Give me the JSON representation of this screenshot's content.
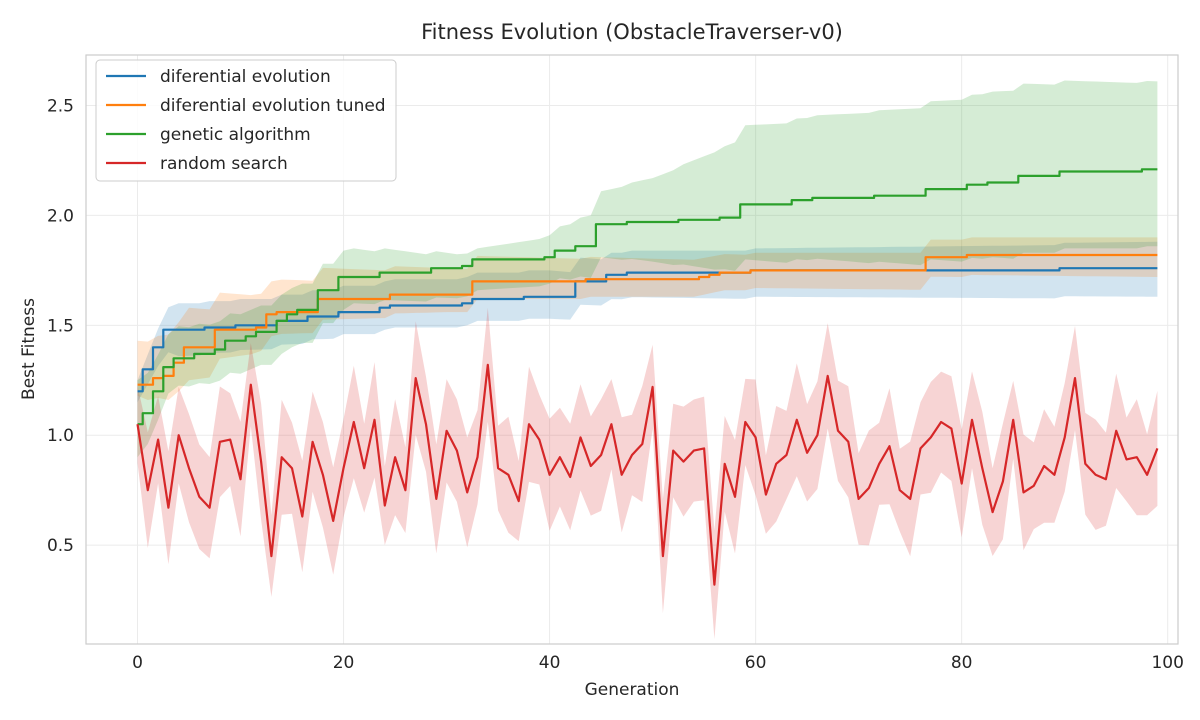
{
  "chart_data": {
    "type": "line",
    "title": "Fitness Evolution (ObstacleTraverser-v0)",
    "xlabel": "Generation",
    "ylabel": "Best Fitness",
    "xlim": [
      -5,
      101
    ],
    "ylim": [
      0.05,
      2.73
    ],
    "xticks": [
      0,
      20,
      40,
      60,
      80,
      100
    ],
    "yticks": [
      0.5,
      1.0,
      1.5,
      2.0,
      2.5
    ],
    "xtick_labels": [
      "0",
      "20",
      "40",
      "60",
      "80",
      "100"
    ],
    "ytick_labels": [
      "0.5",
      "1.0",
      "1.5",
      "2.0",
      "2.5"
    ],
    "grid": true,
    "legend_position": "upper-left",
    "x_range": [
      0,
      99
    ],
    "series": [
      {
        "name": "diferential evolution",
        "color": "#1f77b4",
        "steps": [
          [
            0,
            1.2
          ],
          [
            1,
            1.3
          ],
          [
            2,
            1.4
          ],
          [
            3,
            1.48
          ],
          [
            7,
            1.49
          ],
          [
            10,
            1.5
          ],
          [
            14,
            1.52
          ],
          [
            17,
            1.54
          ],
          [
            20,
            1.56
          ],
          [
            24,
            1.58
          ],
          [
            25,
            1.59
          ],
          [
            32,
            1.6
          ],
          [
            33,
            1.62
          ],
          [
            38,
            1.63
          ],
          [
            43,
            1.7
          ],
          [
            46,
            1.73
          ],
          [
            47,
            1.73
          ],
          [
            48,
            1.74
          ],
          [
            56,
            1.74
          ],
          [
            59,
            1.74
          ],
          [
            60,
            1.75
          ],
          [
            89,
            1.75
          ],
          [
            90,
            1.76
          ],
          [
            99,
            1.76
          ]
        ],
        "band": [
          [
            0,
            -0.05,
            0.05
          ],
          [
            4,
            -0.12,
            0.12
          ],
          [
            20,
            -0.1,
            0.12
          ],
          [
            40,
            -0.1,
            0.12
          ],
          [
            45,
            -0.11,
            0.1
          ],
          [
            60,
            -0.12,
            0.1
          ],
          [
            99,
            -0.13,
            0.12
          ]
        ]
      },
      {
        "name": "diferential evolution tuned",
        "color": "#ff7f0e",
        "steps": [
          [
            0,
            1.23
          ],
          [
            1,
            1.23
          ],
          [
            2,
            1.26
          ],
          [
            3,
            1.27
          ],
          [
            4,
            1.33
          ],
          [
            5,
            1.4
          ],
          [
            8,
            1.48
          ],
          [
            12,
            1.49
          ],
          [
            13,
            1.55
          ],
          [
            14,
            1.56
          ],
          [
            18,
            1.62
          ],
          [
            25,
            1.64
          ],
          [
            33,
            1.7
          ],
          [
            44,
            1.71
          ],
          [
            55,
            1.72
          ],
          [
            56,
            1.73
          ],
          [
            57,
            1.74
          ],
          [
            60,
            1.75
          ],
          [
            77,
            1.81
          ],
          [
            81,
            1.82
          ],
          [
            99,
            1.82
          ]
        ],
        "band": [
          [
            0,
            -0.05,
            0.2
          ],
          [
            5,
            -0.15,
            0.18
          ],
          [
            13,
            -0.1,
            0.15
          ],
          [
            30,
            -0.08,
            0.12
          ],
          [
            60,
            -0.08,
            0.08
          ],
          [
            99,
            -0.1,
            0.08
          ]
        ]
      },
      {
        "name": "genetic algorithm",
        "color": "#2ca02c",
        "steps": [
          [
            0,
            1.05
          ],
          [
            1,
            1.1
          ],
          [
            2,
            1.2
          ],
          [
            3,
            1.31
          ],
          [
            4,
            1.35
          ],
          [
            6,
            1.37
          ],
          [
            8,
            1.39
          ],
          [
            9,
            1.43
          ],
          [
            11,
            1.45
          ],
          [
            12,
            1.47
          ],
          [
            14,
            1.52
          ],
          [
            15,
            1.55
          ],
          [
            16,
            1.57
          ],
          [
            18,
            1.66
          ],
          [
            20,
            1.72
          ],
          [
            24,
            1.74
          ],
          [
            29,
            1.76
          ],
          [
            32,
            1.77
          ],
          [
            33,
            1.8
          ],
          [
            38,
            1.8
          ],
          [
            40,
            1.81
          ],
          [
            41,
            1.84
          ],
          [
            43,
            1.86
          ],
          [
            45,
            1.96
          ],
          [
            48,
            1.97
          ],
          [
            53,
            1.98
          ],
          [
            57,
            1.99
          ],
          [
            59,
            2.05
          ],
          [
            64,
            2.07
          ],
          [
            66,
            2.08
          ],
          [
            72,
            2.09
          ],
          [
            77,
            2.12
          ],
          [
            81,
            2.14
          ],
          [
            83,
            2.15
          ],
          [
            86,
            2.18
          ],
          [
            90,
            2.2
          ],
          [
            98,
            2.21
          ],
          [
            99,
            2.21
          ]
        ],
        "band": [
          [
            0,
            -0.15,
            0.2
          ],
          [
            3,
            -0.12,
            0.15
          ],
          [
            10,
            -0.15,
            0.12
          ],
          [
            20,
            -0.15,
            0.12
          ],
          [
            21,
            -0.12,
            0.13
          ],
          [
            33,
            -0.14,
            0.05
          ],
          [
            40,
            -0.12,
            0.1
          ],
          [
            45,
            -0.15,
            0.15
          ],
          [
            50,
            -0.18,
            0.2
          ],
          [
            59,
            -0.25,
            0.36
          ],
          [
            77,
            -0.32,
            0.4
          ],
          [
            86,
            -0.35,
            0.42
          ],
          [
            99,
            -0.35,
            0.4
          ]
        ]
      },
      {
        "name": "random search",
        "color": "#d62728",
        "values": [
          1.05,
          0.75,
          0.98,
          0.67,
          1.0,
          0.85,
          0.72,
          0.67,
          0.97,
          0.98,
          0.8,
          1.23,
          0.88,
          0.45,
          0.9,
          0.85,
          0.63,
          0.97,
          0.82,
          0.61,
          0.85,
          1.06,
          0.85,
          1.07,
          0.68,
          0.9,
          0.75,
          1.26,
          1.05,
          0.71,
          1.02,
          0.93,
          0.74,
          0.9,
          1.32,
          0.85,
          0.82,
          0.7,
          1.05,
          0.98,
          0.82,
          0.9,
          0.81,
          0.99,
          0.86,
          0.91,
          1.05,
          0.82,
          0.91,
          0.96,
          1.22,
          0.45,
          0.93,
          0.88,
          0.93,
          0.94,
          0.32,
          0.87,
          0.72,
          1.06,
          0.99,
          0.73,
          0.87,
          0.91,
          1.07,
          0.92,
          1.0,
          1.27,
          1.02,
          0.97,
          0.71,
          0.76,
          0.87,
          0.95,
          0.75,
          0.71,
          0.94,
          0.99,
          1.06,
          1.03,
          0.78,
          1.07,
          0.85,
          0.65,
          0.79,
          1.07,
          0.74,
          0.77,
          0.86,
          0.82,
          0.99,
          1.26,
          0.87,
          0.82,
          0.8,
          1.02,
          0.89,
          0.9,
          0.82,
          0.94
        ],
        "band_width": 0.22
      }
    ]
  }
}
